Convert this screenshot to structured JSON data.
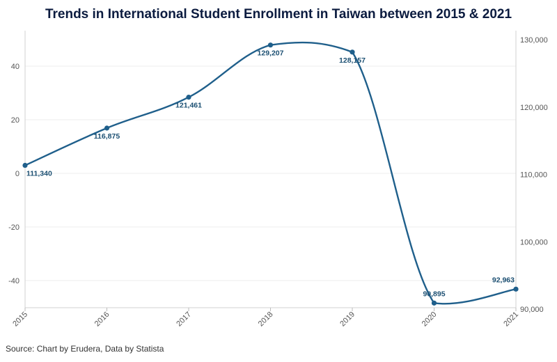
{
  "chart_data": {
    "type": "line",
    "title": "Trends in International Student Enrollment in Taiwan between 2015 & 2021",
    "source": "Source: Chart by Erudera, Data by Statista",
    "x": [
      "2015",
      "2016",
      "2017",
      "2018",
      "2019",
      "2020",
      "2021"
    ],
    "series": [
      {
        "values": [
          111340,
          116875,
          121461,
          129207,
          128157,
          90895,
          92963
        ],
        "labels": [
          "111,340",
          "116,875",
          "121,461",
          "129,207",
          "128,157",
          "90,895",
          "92,963"
        ],
        "color": "#1f5f8b"
      }
    ],
    "y_right": {
      "range": [
        90000,
        130000
      ],
      "ticks": [
        90000,
        100000,
        110000,
        120000,
        130000
      ],
      "tick_labels": [
        "90,000",
        "100,000",
        "110,000",
        "120,000",
        "130,000"
      ]
    },
    "y_left": {
      "range": [
        -50,
        50
      ],
      "ticks": [
        -40,
        -20,
        0,
        20,
        40
      ],
      "tick_labels": [
        "-40",
        "-20",
        "0",
        "20",
        "40"
      ]
    },
    "grid": true,
    "legend": "none"
  }
}
